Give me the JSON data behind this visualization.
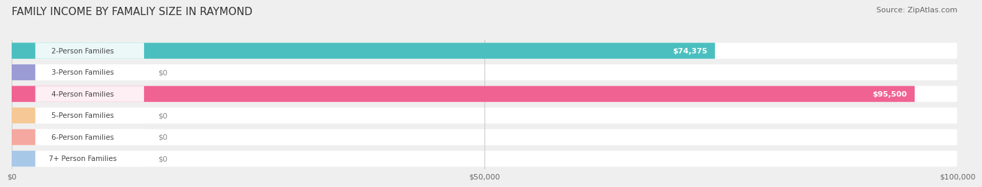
{
  "title": "FAMILY INCOME BY FAMALIY SIZE IN RAYMOND",
  "source": "Source: ZipAtlas.com",
  "categories": [
    "2-Person Families",
    "3-Person Families",
    "4-Person Families",
    "5-Person Families",
    "6-Person Families",
    "7+ Person Families"
  ],
  "values": [
    74375,
    0,
    95500,
    0,
    0,
    0
  ],
  "bar_colors": [
    "#4bbfbf",
    "#9b9cd4",
    "#f06292",
    "#f5c896",
    "#f4a8a0",
    "#a8c8e8"
  ],
  "value_labels": [
    "$74,375",
    "$0",
    "$95,500",
    "$0",
    "$0",
    "$0"
  ],
  "xlim": [
    0,
    100000
  ],
  "xticks": [
    0,
    50000,
    100000
  ],
  "xtick_labels": [
    "$0",
    "$50,000",
    "$100,000"
  ],
  "background_color": "#efefef",
  "title_fontsize": 11,
  "source_fontsize": 8
}
